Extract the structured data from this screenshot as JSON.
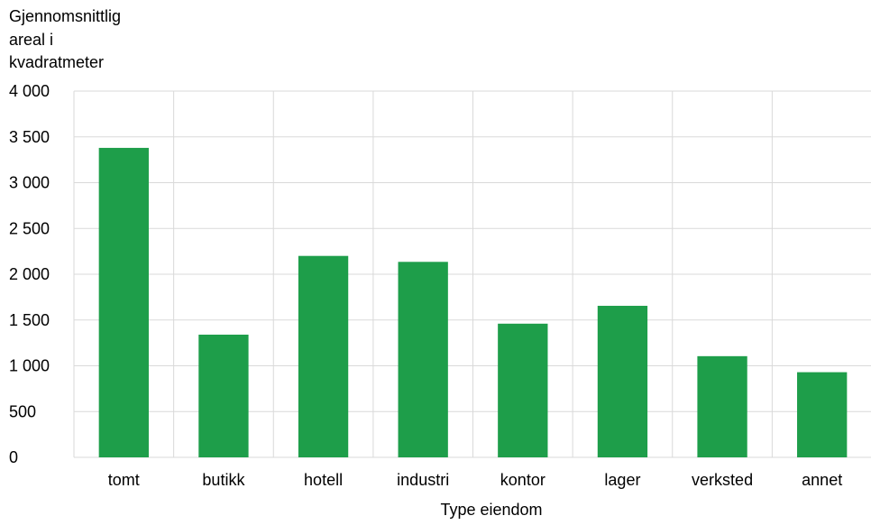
{
  "chart_data": {
    "type": "bar",
    "ylabel_lines": [
      "Gjennomsnittlig",
      "areal i",
      "kvadratmeter"
    ],
    "xlabel": "Type eiendom",
    "categories": [
      "tomt",
      "butikk",
      "hotell",
      "industri",
      "kontor",
      "lager",
      "verksted",
      "annet"
    ],
    "values": [
      3380,
      1340,
      2200,
      2135,
      1460,
      1655,
      1105,
      930
    ],
    "ylim": [
      0,
      4000
    ],
    "yticks": [
      0,
      500,
      1000,
      1500,
      2000,
      2500,
      3000,
      3500,
      4000
    ],
    "ytick_labels": [
      "0",
      "500",
      "1 000",
      "1 500",
      "2 000",
      "2 500",
      "3 000",
      "3 500",
      "4 000"
    ],
    "grid": true,
    "colors": {
      "bar": "#1e9e4a",
      "grid": "#d9d9d9"
    }
  }
}
